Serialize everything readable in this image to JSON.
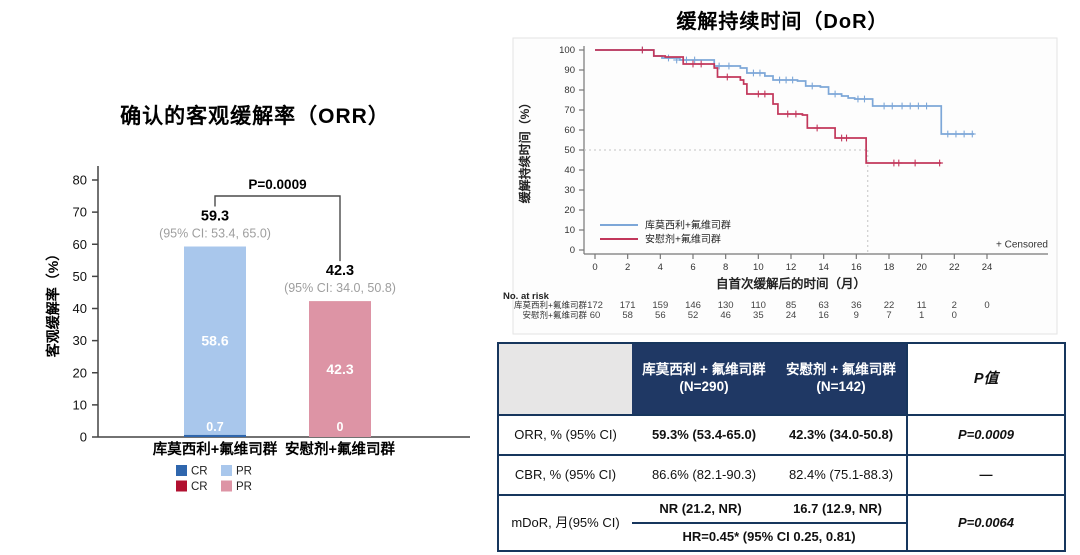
{
  "colors": {
    "bar_dark_blue": "#2f66ad",
    "bar_light_blue": "#a9c7ec",
    "bar_dark_red": "#b11030",
    "bar_pink": "#dd94a5",
    "km_blue": "#7da7d8",
    "km_red": "#c2375b",
    "table_navy": "#1f3864",
    "table_gray": "#e7e6e6",
    "ci_gray": "#9e9e9e"
  },
  "chart_data": [
    {
      "id": "orr",
      "type": "bar",
      "title": "确认的客观缓解率（ORR）",
      "ylabel": "客观缓解率（%）",
      "ylim": [
        0,
        80
      ],
      "yticks": [
        0,
        10,
        20,
        30,
        40,
        50,
        60,
        70,
        80
      ],
      "p_label": "P=0.0009",
      "groups": [
        {
          "label": "库莫西利+氟维司群",
          "total": 59.3,
          "total_label": "59.3",
          "ci_label": "(95% CI: 53.4, 65.0)",
          "segments": [
            {
              "name": "CR",
              "value": 0.7,
              "label": "0.7",
              "color": "#2f66ad"
            },
            {
              "name": "PR",
              "value": 58.6,
              "label": "58.6",
              "color": "#a9c7ec"
            }
          ]
        },
        {
          "label": "安慰剂+氟维司群",
          "total": 42.3,
          "total_label": "42.3",
          "ci_label": "(95% CI: 34.0, 50.8)",
          "segments": [
            {
              "name": "CR",
              "value": 0,
              "label": "0",
              "color": "#b11030"
            },
            {
              "name": "PR",
              "value": 42.3,
              "label": "42.3",
              "color": "#dd94a5"
            }
          ]
        }
      ],
      "legend_rows": [
        [
          {
            "name": "CR",
            "color": "#2f66ad"
          },
          {
            "name": "PR",
            "color": "#a9c7ec"
          }
        ],
        [
          {
            "name": "CR",
            "color": "#b11030"
          },
          {
            "name": "PR",
            "color": "#dd94a5"
          }
        ]
      ]
    },
    {
      "id": "dor",
      "type": "line",
      "title": "缓解持续时间（DoR）",
      "ylabel": "缓解持续时间（%）",
      "xlabel": "自首次缓解后的时间（月）",
      "ylim": [
        0,
        100
      ],
      "xlim": [
        0,
        24
      ],
      "yticks": [
        0,
        10,
        20,
        30,
        40,
        50,
        60,
        70,
        80,
        90,
        100
      ],
      "xticks": [
        0,
        2,
        4,
        6,
        8,
        10,
        12,
        14,
        16,
        18,
        20,
        22,
        24
      ],
      "censored_label": "+ Censored",
      "reference": {
        "y": 50,
        "x": 16.7
      },
      "series": [
        {
          "name": "库莫西利+氟维司群",
          "color": "#7da7d8",
          "steps": [
            [
              0,
              100
            ],
            [
              3.6,
              100
            ],
            [
              3.6,
              97
            ],
            [
              4.1,
              97
            ],
            [
              4.1,
              96
            ],
            [
              5.2,
              96
            ],
            [
              5.2,
              95
            ],
            [
              7.3,
              95
            ],
            [
              7.3,
              92
            ],
            [
              8.9,
              92
            ],
            [
              8.9,
              91
            ],
            [
              9.3,
              91
            ],
            [
              9.3,
              88.5
            ],
            [
              10.4,
              88.5
            ],
            [
              10.4,
              87
            ],
            [
              10.9,
              87
            ],
            [
              10.9,
              85
            ],
            [
              12.4,
              85
            ],
            [
              12.4,
              84.5
            ],
            [
              12.9,
              84.5
            ],
            [
              12.9,
              82
            ],
            [
              13.8,
              82
            ],
            [
              13.8,
              81.5
            ],
            [
              14.3,
              81.5
            ],
            [
              14.3,
              78
            ],
            [
              15.1,
              78
            ],
            [
              15.1,
              77
            ],
            [
              15.5,
              77
            ],
            [
              15.5,
              76
            ],
            [
              15.9,
              76
            ],
            [
              15.9,
              75.5
            ],
            [
              17.0,
              75.5
            ],
            [
              17.0,
              72
            ],
            [
              21.2,
              72
            ],
            [
              21.2,
              58
            ],
            [
              23.2,
              58
            ]
          ],
          "censors": [
            [
              2.9,
              100
            ],
            [
              4.5,
              96
            ],
            [
              5.0,
              95
            ],
            [
              5.6,
              95
            ],
            [
              6.1,
              95
            ],
            [
              7.6,
              92
            ],
            [
              8.2,
              92
            ],
            [
              9.7,
              88.5
            ],
            [
              10.1,
              88.5
            ],
            [
              11.3,
              85
            ],
            [
              11.7,
              85
            ],
            [
              12.1,
              85
            ],
            [
              13.3,
              82
            ],
            [
              14.7,
              78
            ],
            [
              16.1,
              75.5
            ],
            [
              16.5,
              75.5
            ],
            [
              17.7,
              72
            ],
            [
              18.2,
              72
            ],
            [
              18.8,
              72
            ],
            [
              19.3,
              72
            ],
            [
              19.8,
              72
            ],
            [
              20.3,
              72
            ],
            [
              21.6,
              58
            ],
            [
              22.1,
              58
            ],
            [
              22.6,
              58
            ],
            [
              23.1,
              58
            ]
          ]
        },
        {
          "name": "安慰剂+氟维司群",
          "color": "#c2375b",
          "steps": [
            [
              0,
              100
            ],
            [
              3.6,
              100
            ],
            [
              3.6,
              97
            ],
            [
              4.3,
              97
            ],
            [
              4.3,
              96.5
            ],
            [
              5.4,
              96.5
            ],
            [
              5.4,
              93
            ],
            [
              7.3,
              93
            ],
            [
              7.3,
              91
            ],
            [
              7.5,
              91
            ],
            [
              7.5,
              86.5
            ],
            [
              8.9,
              86.5
            ],
            [
              8.9,
              85
            ],
            [
              9.1,
              85
            ],
            [
              9.1,
              83
            ],
            [
              9.3,
              83
            ],
            [
              9.3,
              78
            ],
            [
              10.9,
              78
            ],
            [
              10.9,
              73
            ],
            [
              11.2,
              73
            ],
            [
              11.2,
              68
            ],
            [
              12.7,
              68
            ],
            [
              12.7,
              67.5
            ],
            [
              13.0,
              67.5
            ],
            [
              13.0,
              61
            ],
            [
              14.7,
              61
            ],
            [
              14.7,
              56
            ],
            [
              16.6,
              56
            ],
            [
              16.6,
              43.5
            ],
            [
              21.2,
              43.5
            ]
          ],
          "censors": [
            [
              2.9,
              100
            ],
            [
              6.0,
              93
            ],
            [
              6.5,
              93
            ],
            [
              8.1,
              86.5
            ],
            [
              10.0,
              78
            ],
            [
              10.4,
              78
            ],
            [
              11.8,
              68
            ],
            [
              12.3,
              68
            ],
            [
              13.6,
              61
            ],
            [
              15.1,
              56
            ],
            [
              15.4,
              56
            ],
            [
              18.3,
              43.5
            ],
            [
              18.6,
              43.5
            ],
            [
              19.6,
              43.5
            ],
            [
              21.1,
              43.5
            ]
          ]
        }
      ],
      "at_risk": {
        "title": "No. at risk",
        "rows": [
          {
            "name": "库莫西利+氟维司群",
            "counts": [
              "172",
              "171",
              "159",
              "146",
              "130",
              "110",
              "85",
              "63",
              "36",
              "22",
              "11",
              "2",
              "0"
            ]
          },
          {
            "name": "安慰剂+氟维司群",
            "counts": [
              "60",
              "58",
              "56",
              "52",
              "46",
              "35",
              "24",
              "16",
              "9",
              "7",
              "1",
              "0"
            ]
          }
        ]
      }
    }
  ],
  "summary_table": {
    "columns": [
      "",
      "库莫西利 + 氟维司群 (N=290)",
      "安慰剂 + 氟维司群 (N=142)",
      "P值"
    ],
    "rows": [
      {
        "label": "ORR, % (95% CI)",
        "col1": "59.3% (53.4-65.0)",
        "col2": "42.3% (34.0-50.8)",
        "p": "P=0.0009"
      },
      {
        "label": "CBR, % (95% CI)",
        "col1": "86.6% (82.1-90.3)",
        "col2": "82.4% (75.1-88.3)",
        "p": "—"
      },
      {
        "label": "mDoR, 月(95% CI)",
        "col1": "NR (21.2, NR)",
        "col2": "16.7 (12.9, NR)",
        "hr": "HR=0.45* (95% CI 0.25, 0.81)",
        "p": "P=0.0064"
      }
    ]
  }
}
